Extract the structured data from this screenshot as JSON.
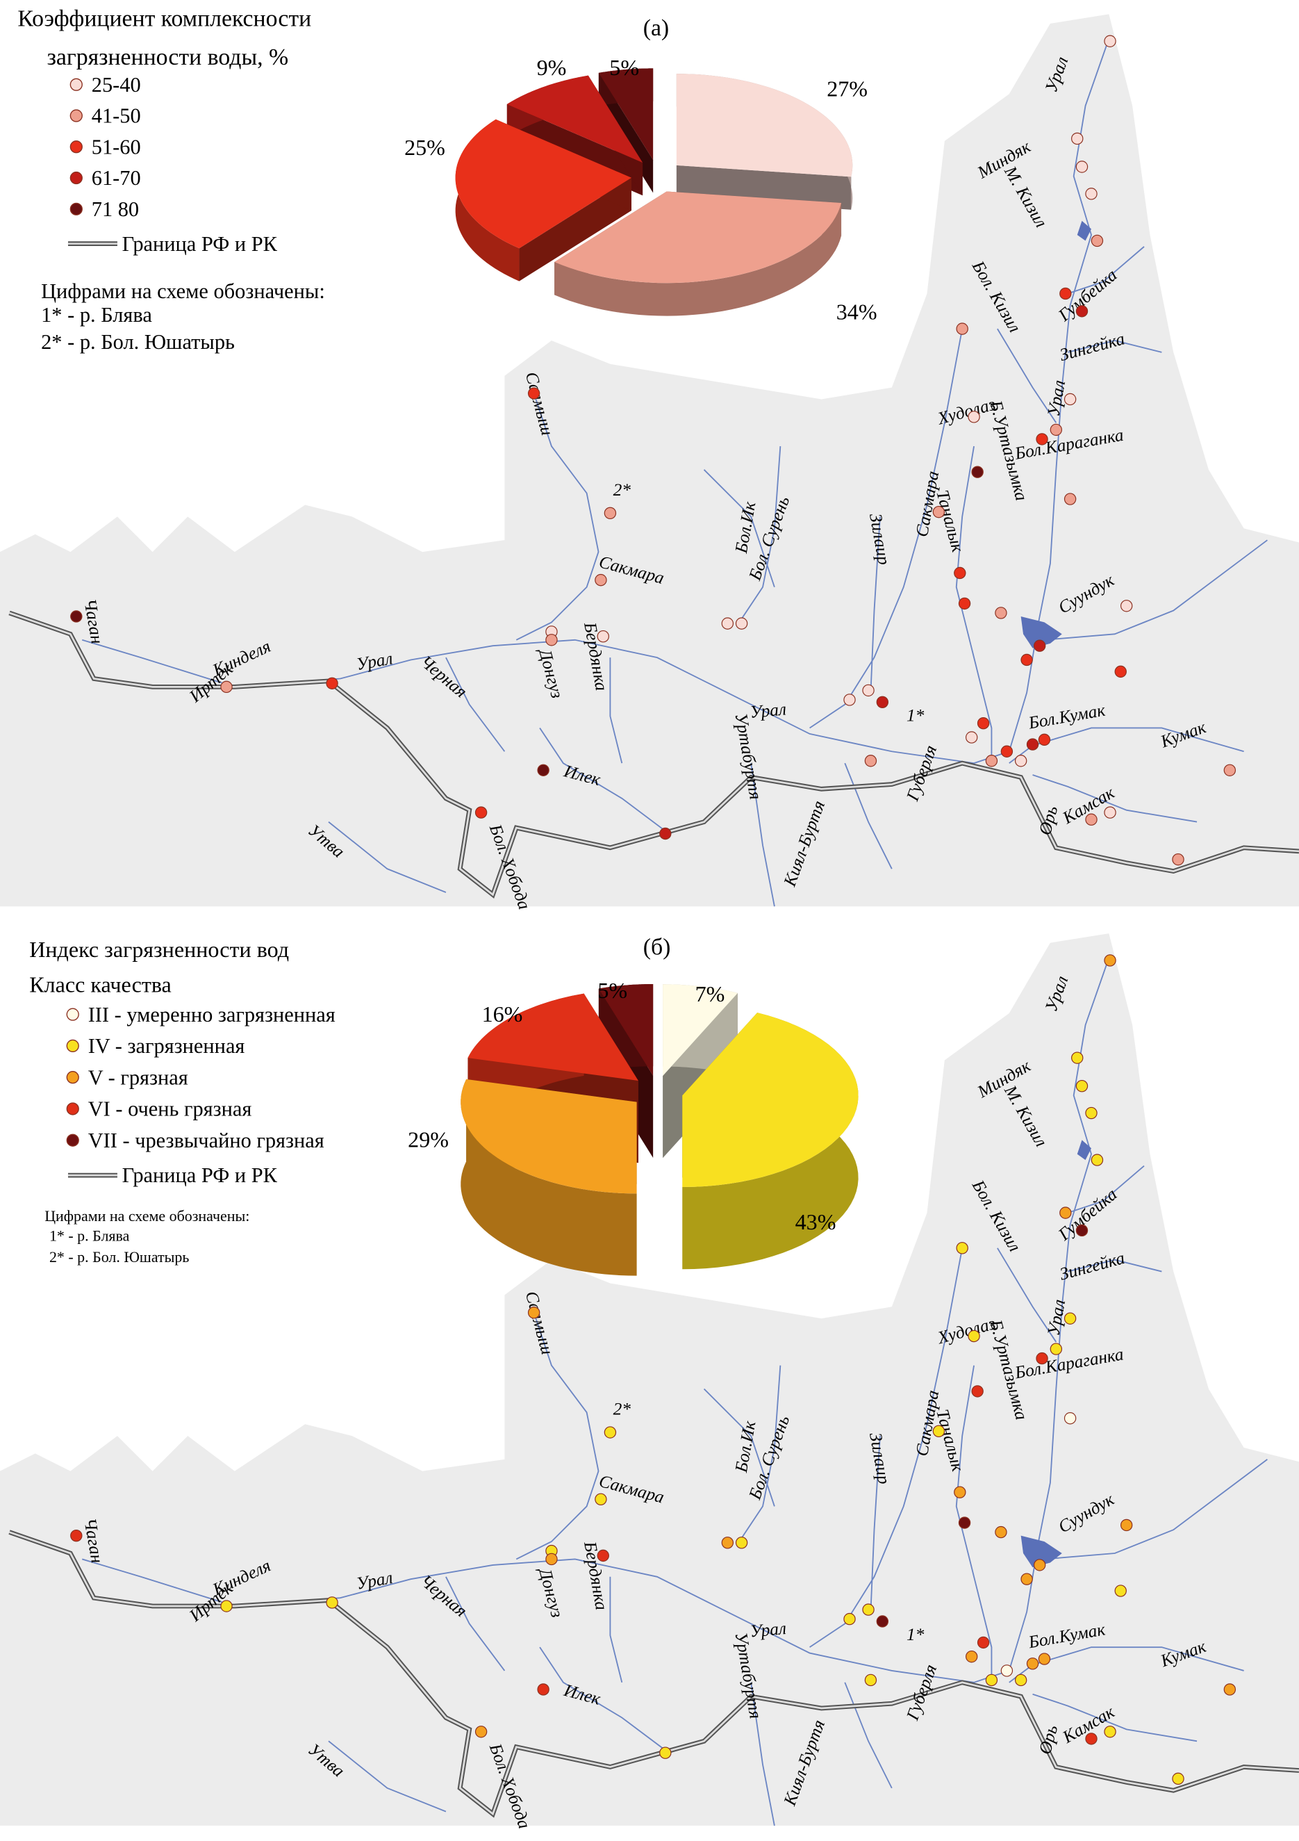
{
  "panels": [
    {
      "label": "(а)",
      "title_lines": [
        "Коэффициент комплексности",
        "загрязненности воды, %"
      ],
      "legend": [
        {
          "name": "25-40",
          "color": "#f9dcd6"
        },
        {
          "name": "41-50",
          "color": "#eea08e"
        },
        {
          "name": "51-60",
          "color": "#e8301a"
        },
        {
          "name": "61-70",
          "color": "#c21e18"
        },
        {
          "name": "71 80",
          "color": "#6a1010"
        }
      ],
      "border_label": "Граница РФ и РК",
      "notes": [
        "Цифрами на схеме обозначены:",
        "1* - р. Блява",
        "2* - р. Бол. Юшатырь"
      ],
      "pie": {
        "values": [
          27,
          34,
          25,
          9,
          5
        ],
        "value_labels": [
          "27%",
          "34%",
          "25%",
          "9%",
          "5%"
        ]
      }
    },
    {
      "label": "(б)",
      "title_lines": [
        "Индекс загрязненности вод",
        "Класс качества"
      ],
      "legend": [
        {
          "name": "III - умеренно загрязненная",
          "color": "#fffbe6"
        },
        {
          "name": "IV - загрязненная",
          "color": "#f8e020"
        },
        {
          "name": "V - грязная",
          "color": "#f4a020"
        },
        {
          "name": "VI - очень грязная",
          "color": "#e03018"
        },
        {
          "name": "VII - чрезвычайно грязная",
          "color": "#701010"
        }
      ],
      "border_label": "Граница РФ и РК",
      "notes": [
        "Цифрами на схеме обозначены:",
        "1* - р. Блява",
        "2* - р. Бол. Юшатырь"
      ],
      "pie": {
        "values": [
          7,
          43,
          29,
          16,
          5
        ],
        "value_labels": [
          "7%",
          "43%",
          "29%",
          "16%",
          "5%"
        ]
      }
    }
  ],
  "map_labels": [
    "Урал",
    "Миндяк",
    "М. Кизил",
    "Гумбейка",
    "Бол. Кизил",
    "Зингейка",
    "Урал",
    "Худолаз",
    "Бол.Караганка",
    "Б.Уртазымка",
    "Сакмара",
    "Таналык",
    "Суундук",
    "Салмыш",
    "2*",
    "Бол.Ик",
    "Бол. Сурень",
    "Зилаир",
    "Сакмара",
    "Чаган",
    "Иртек",
    "Кинделя",
    "Урал",
    "Черная",
    "Донгуз",
    "Бердянка",
    "Урал",
    "Уртабуртя",
    "1*",
    "Губерля",
    "Бол.Кумак",
    "Кумак",
    "Киял-Буртя",
    "Илек",
    "Камсак",
    "Орь",
    "Утва",
    "Бол. Хобода"
  ]
}
